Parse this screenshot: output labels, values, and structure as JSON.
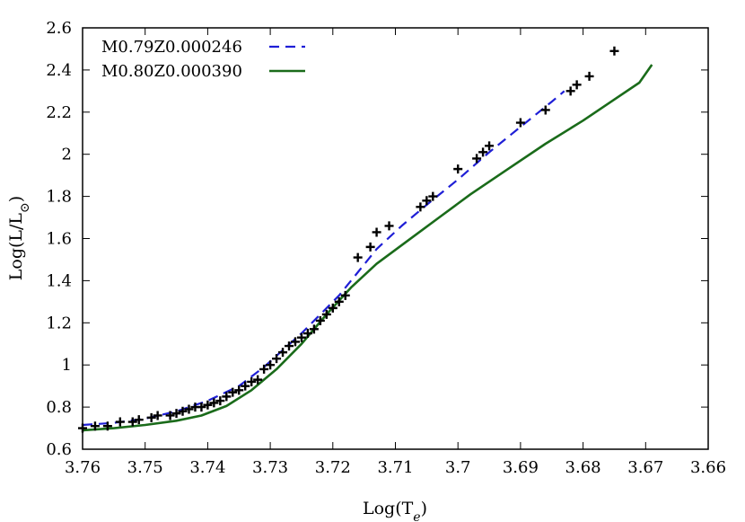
{
  "chart_data": {
    "type": "line",
    "xlabel": "Log(T_e)",
    "ylabel": "Log(L/L_sun)",
    "xlim": [
      3.76,
      3.66
    ],
    "ylim": [
      0.6,
      2.6
    ],
    "x_reversed": true,
    "grid": false,
    "legend_position": "top-left",
    "xticks": [
      "3.76",
      "3.75",
      "3.74",
      "3.73",
      "3.72",
      "3.71",
      "3.7",
      "3.69",
      "3.68",
      "3.67",
      "3.66"
    ],
    "yticks": [
      "0.6",
      "0.8",
      "1",
      "1.2",
      "1.4",
      "1.6",
      "1.8",
      "2",
      "2.2",
      "2.4",
      "2.6"
    ],
    "series": [
      {
        "name": "M0.79Z0.000246",
        "style": "dashed",
        "color": "#1f1fd6",
        "points": [
          [
            3.76,
            0.715
          ],
          [
            3.755,
            0.725
          ],
          [
            3.75,
            0.745
          ],
          [
            3.745,
            0.78
          ],
          [
            3.74,
            0.83
          ],
          [
            3.735,
            0.9
          ],
          [
            3.731,
            0.99
          ],
          [
            3.728,
            1.07
          ],
          [
            3.725,
            1.15
          ],
          [
            3.722,
            1.24
          ],
          [
            3.719,
            1.33
          ],
          [
            3.716,
            1.44
          ],
          [
            3.713,
            1.55
          ],
          [
            3.709,
            1.66
          ],
          [
            3.705,
            1.76
          ],
          [
            3.7,
            1.88
          ],
          [
            3.695,
            2.01
          ],
          [
            3.69,
            2.13
          ],
          [
            3.685,
            2.25
          ],
          [
            3.683,
            2.3
          ]
        ]
      },
      {
        "name": "M0.80Z0.000390",
        "style": "solid",
        "color": "#1a6b1a",
        "points": [
          [
            3.76,
            0.69
          ],
          [
            3.755,
            0.7
          ],
          [
            3.75,
            0.715
          ],
          [
            3.745,
            0.735
          ],
          [
            3.741,
            0.76
          ],
          [
            3.737,
            0.805
          ],
          [
            3.733,
            0.88
          ],
          [
            3.729,
            0.98
          ],
          [
            3.725,
            1.1
          ],
          [
            3.721,
            1.24
          ],
          [
            3.717,
            1.37
          ],
          [
            3.713,
            1.48
          ],
          [
            3.708,
            1.59
          ],
          [
            3.703,
            1.7
          ],
          [
            3.698,
            1.81
          ],
          [
            3.692,
            1.93
          ],
          [
            3.686,
            2.05
          ],
          [
            3.68,
            2.16
          ],
          [
            3.675,
            2.26
          ],
          [
            3.671,
            2.34
          ],
          [
            3.669,
            2.425
          ]
        ]
      },
      {
        "marker": "plus",
        "color": "#000000",
        "points": [
          [
            3.76,
            0.7
          ],
          [
            3.758,
            0.71
          ],
          [
            3.756,
            0.71
          ],
          [
            3.754,
            0.73
          ],
          [
            3.752,
            0.73
          ],
          [
            3.751,
            0.74
          ],
          [
            3.749,
            0.75
          ],
          [
            3.748,
            0.76
          ],
          [
            3.746,
            0.76
          ],
          [
            3.745,
            0.77
          ],
          [
            3.744,
            0.78
          ],
          [
            3.743,
            0.79
          ],
          [
            3.742,
            0.8
          ],
          [
            3.741,
            0.8
          ],
          [
            3.74,
            0.81
          ],
          [
            3.739,
            0.82
          ],
          [
            3.738,
            0.83
          ],
          [
            3.737,
            0.85
          ],
          [
            3.736,
            0.87
          ],
          [
            3.735,
            0.88
          ],
          [
            3.734,
            0.9
          ],
          [
            3.733,
            0.92
          ],
          [
            3.732,
            0.93
          ],
          [
            3.731,
            0.98
          ],
          [
            3.73,
            1.0
          ],
          [
            3.729,
            1.03
          ],
          [
            3.728,
            1.06
          ],
          [
            3.727,
            1.09
          ],
          [
            3.726,
            1.11
          ],
          [
            3.725,
            1.13
          ],
          [
            3.724,
            1.15
          ],
          [
            3.723,
            1.17
          ],
          [
            3.722,
            1.21
          ],
          [
            3.721,
            1.24
          ],
          [
            3.72,
            1.27
          ],
          [
            3.719,
            1.3
          ],
          [
            3.718,
            1.33
          ],
          [
            3.716,
            1.51
          ],
          [
            3.714,
            1.56
          ],
          [
            3.713,
            1.63
          ],
          [
            3.711,
            1.66
          ],
          [
            3.706,
            1.75
          ],
          [
            3.705,
            1.78
          ],
          [
            3.704,
            1.8
          ],
          [
            3.7,
            1.93
          ],
          [
            3.697,
            1.98
          ],
          [
            3.696,
            2.01
          ],
          [
            3.695,
            2.04
          ],
          [
            3.69,
            2.15
          ],
          [
            3.686,
            2.21
          ],
          [
            3.682,
            2.3
          ],
          [
            3.681,
            2.33
          ],
          [
            3.679,
            2.37
          ],
          [
            3.675,
            2.49
          ]
        ]
      }
    ]
  }
}
